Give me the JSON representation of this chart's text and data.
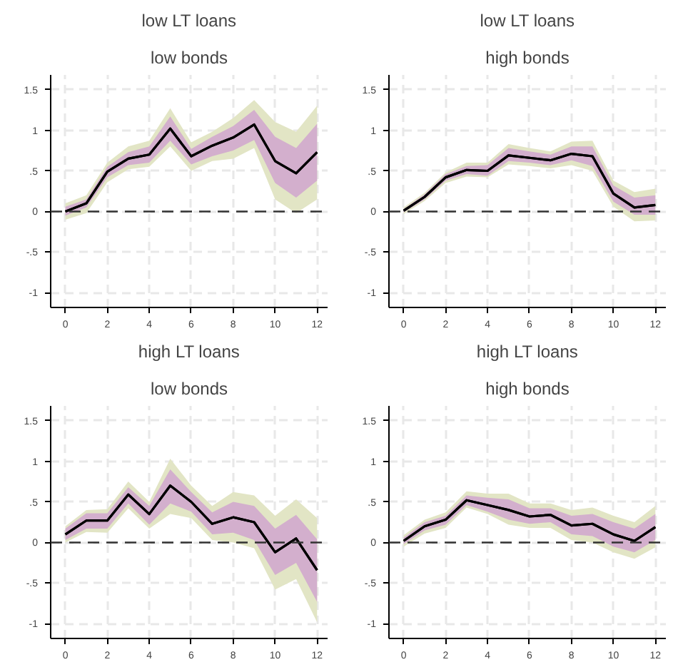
{
  "chart_data": [
    {
      "type": "line",
      "colors": [
        "#e2e5c5",
        "#d3afcd"
      ],
      "title": "low LT loans",
      "subtitle": "low bonds",
      "x": [
        0,
        1,
        2,
        3,
        4,
        5,
        6,
        7,
        8,
        9,
        10,
        11,
        12
      ],
      "xlim": [
        -0.7,
        12.5
      ],
      "xticks": [
        0,
        2,
        4,
        6,
        8,
        10,
        12
      ],
      "ylim": [
        -1.18,
        1.68
      ],
      "yticks": [
        {
          "value": -1,
          "label": "-1"
        },
        {
          "value": -0.5,
          "label": "-.5"
        },
        0,
        {
          "value": 0.5,
          "label": ".5"
        },
        1,
        1.5
      ],
      "grid": true,
      "ref_lines": [
        {
          "axis": "y",
          "value": 0,
          "color": "#333333",
          "line_style": "dashed"
        }
      ],
      "series": [
        {
          "color": "#000000",
          "values": [
            0,
            0.1,
            0.49,
            0.65,
            0.7,
            1.02,
            0.68,
            0.81,
            0.91,
            1.07,
            0.62,
            0.47,
            0.73
          ],
          "lower": [
            -0.1,
            -0.02,
            0.36,
            0.52,
            0.55,
            0.8,
            0.5,
            0.62,
            0.65,
            0.78,
            0.15,
            -0.02,
            0.15
          ],
          "upper": [
            0.1,
            0.2,
            0.6,
            0.8,
            0.87,
            1.27,
            0.85,
            0.98,
            1.15,
            1.37,
            1.1,
            0.98,
            1.3
          ]
        },
        {
          "color": "#000000",
          "values": [
            0,
            0.1,
            0.49,
            0.65,
            0.7,
            1.02,
            0.68,
            0.81,
            0.91,
            1.07,
            0.62,
            0.47,
            0.73
          ],
          "lower": [
            -0.05,
            0.05,
            0.42,
            0.57,
            0.6,
            0.87,
            0.58,
            0.68,
            0.75,
            0.88,
            0.35,
            0.17,
            0.38
          ],
          "upper": [
            0.06,
            0.15,
            0.55,
            0.73,
            0.8,
            1.17,
            0.77,
            0.92,
            1.05,
            1.25,
            0.92,
            0.78,
            1.08
          ]
        }
      ]
    },
    {
      "type": "line",
      "colors": [
        "#e2e5c5",
        "#d3afcd"
      ],
      "title": "low LT loans",
      "subtitle": "high bonds",
      "x": [
        0,
        1,
        2,
        3,
        4,
        5,
        6,
        7,
        8,
        9,
        10,
        11,
        12
      ],
      "xlim": [
        -0.7,
        12.5
      ],
      "xticks": [
        0,
        2,
        4,
        6,
        8,
        10,
        12
      ],
      "ylim": [
        -1.18,
        1.68
      ],
      "yticks": [
        {
          "value": -1,
          "label": "-1"
        },
        {
          "value": -0.5,
          "label": "-.5"
        },
        0,
        {
          "value": 0.5,
          "label": ".5"
        },
        1,
        1.5
      ],
      "grid": true,
      "ref_lines": [
        {
          "axis": "y",
          "value": 0,
          "color": "#333333",
          "line_style": "dashed"
        }
      ],
      "series": [
        {
          "color": "#000000",
          "values": [
            0.01,
            0.18,
            0.42,
            0.51,
            0.5,
            0.69,
            0.66,
            0.63,
            0.71,
            0.68,
            0.22,
            0.05,
            0.08
          ],
          "lower": [
            -0.03,
            0.13,
            0.35,
            0.43,
            0.42,
            0.58,
            0.56,
            0.53,
            0.57,
            0.5,
            0.06,
            -0.12,
            -0.11
          ],
          "upper": [
            0.05,
            0.23,
            0.48,
            0.6,
            0.6,
            0.83,
            0.78,
            0.74,
            0.86,
            0.87,
            0.38,
            0.24,
            0.28
          ]
        },
        {
          "color": "#000000",
          "values": [
            0.01,
            0.18,
            0.42,
            0.51,
            0.5,
            0.69,
            0.66,
            0.63,
            0.71,
            0.68,
            0.22,
            0.05,
            0.08
          ],
          "lower": [
            -0.01,
            0.15,
            0.38,
            0.46,
            0.44,
            0.62,
            0.6,
            0.57,
            0.63,
            0.56,
            0.12,
            -0.04,
            -0.04
          ],
          "upper": [
            0.03,
            0.21,
            0.46,
            0.56,
            0.57,
            0.78,
            0.74,
            0.7,
            0.8,
            0.8,
            0.32,
            0.17,
            0.2
          ]
        }
      ]
    },
    {
      "type": "line",
      "colors": [
        "#e2e5c5",
        "#d3afcd"
      ],
      "title": "high LT loans",
      "subtitle": "low bonds",
      "x": [
        0,
        1,
        2,
        3,
        4,
        5,
        6,
        7,
        8,
        9,
        10,
        11,
        12
      ],
      "xlim": [
        -0.7,
        12.5
      ],
      "xticks": [
        0,
        2,
        4,
        6,
        8,
        10,
        12
      ],
      "ylim": [
        -1.18,
        1.68
      ],
      "yticks": [
        {
          "value": -1,
          "label": "-1"
        },
        {
          "value": -0.5,
          "label": "-.5"
        },
        0,
        {
          "value": 0.5,
          "label": ".5"
        },
        1,
        1.5
      ],
      "grid": true,
      "ref_lines": [
        {
          "axis": "y",
          "value": 0,
          "color": "#333333",
          "line_style": "dashed"
        }
      ],
      "series": [
        {
          "color": "#000000",
          "values": [
            0.1,
            0.27,
            0.27,
            0.59,
            0.35,
            0.7,
            0.5,
            0.23,
            0.31,
            0.25,
            -0.12,
            0.05,
            -0.34
          ],
          "lower": [
            0,
            0.13,
            0.12,
            0.42,
            0.17,
            0.35,
            0.3,
            0.03,
            0,
            -0.07,
            -0.58,
            -0.45,
            -0.98
          ],
          "upper": [
            0.2,
            0.4,
            0.41,
            0.75,
            0.5,
            1.03,
            0.7,
            0.45,
            0.62,
            0.58,
            0.33,
            0.53,
            0.3
          ]
        },
        {
          "color": "#000000",
          "values": [
            0.1,
            0.27,
            0.27,
            0.59,
            0.35,
            0.7,
            0.5,
            0.23,
            0.31,
            0.25,
            -0.12,
            0.05,
            -0.34
          ],
          "lower": [
            0.03,
            0.17,
            0.17,
            0.48,
            0.22,
            0.48,
            0.38,
            0.1,
            0.12,
            0.03,
            -0.4,
            -0.25,
            -0.73
          ],
          "upper": [
            0.17,
            0.36,
            0.36,
            0.68,
            0.45,
            0.9,
            0.62,
            0.37,
            0.5,
            0.45,
            0.17,
            0.34,
            0.04
          ]
        }
      ]
    },
    {
      "type": "line",
      "colors": [
        "#e2e5c5",
        "#d3afcd"
      ],
      "title": "high LT loans",
      "subtitle": "high bonds",
      "x": [
        0,
        1,
        2,
        3,
        4,
        5,
        6,
        7,
        8,
        9,
        10,
        11,
        12
      ],
      "xlim": [
        -0.7,
        12.5
      ],
      "xticks": [
        0,
        2,
        4,
        6,
        8,
        10,
        12
      ],
      "ylim": [
        -1.18,
        1.68
      ],
      "yticks": [
        {
          "value": -1,
          "label": "-1"
        },
        {
          "value": -0.5,
          "label": "-.5"
        },
        0,
        {
          "value": 0.5,
          "label": ".5"
        },
        1,
        1.5
      ],
      "grid": true,
      "ref_lines": [
        {
          "axis": "y",
          "value": 0,
          "color": "#333333",
          "line_style": "dashed"
        }
      ],
      "series": [
        {
          "color": "#000000",
          "values": [
            0.02,
            0.2,
            0.28,
            0.52,
            0.46,
            0.4,
            0.32,
            0.34,
            0.21,
            0.23,
            0.1,
            0.02,
            0.19
          ],
          "lower": [
            -0.05,
            0.11,
            0.18,
            0.43,
            0.35,
            0.22,
            0.18,
            0.18,
            0.03,
            0,
            -0.12,
            -0.2,
            -0.06
          ],
          "upper": [
            0.09,
            0.28,
            0.37,
            0.63,
            0.6,
            0.6,
            0.48,
            0.48,
            0.4,
            0.43,
            0.33,
            0.25,
            0.45
          ]
        },
        {
          "color": "#000000",
          "values": [
            0.02,
            0.2,
            0.28,
            0.52,
            0.46,
            0.4,
            0.32,
            0.34,
            0.21,
            0.23,
            0.1,
            0.02,
            0.19
          ],
          "lower": [
            -0.02,
            0.15,
            0.22,
            0.46,
            0.38,
            0.28,
            0.23,
            0.25,
            0.1,
            0.08,
            -0.05,
            -0.12,
            0.03
          ],
          "upper": [
            0.06,
            0.25,
            0.33,
            0.58,
            0.55,
            0.53,
            0.42,
            0.42,
            0.33,
            0.35,
            0.25,
            0.17,
            0.35
          ]
        }
      ]
    }
  ]
}
